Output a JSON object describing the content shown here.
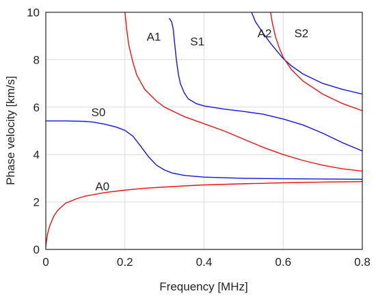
{
  "chart_data": {
    "type": "line",
    "title": "",
    "xlabel": "Frequency [MHz]",
    "ylabel": "Phase velocity [km/s]",
    "xlim": [
      0,
      0.8
    ],
    "ylim": [
      0,
      10
    ],
    "xticks": [
      "0",
      "0.2",
      "0.4",
      "0.6",
      "0.8"
    ],
    "yticks": [
      "0",
      "2",
      "4",
      "6",
      "8",
      "10"
    ],
    "grid": true,
    "legend": "none",
    "colors": {
      "symmetric": "#1010ee",
      "antisymmetric": "#ee1010"
    },
    "series": [
      {
        "name": "A0",
        "color": "#ee1010",
        "x": [
          0.0,
          0.002,
          0.005,
          0.01,
          0.02,
          0.03,
          0.05,
          0.08,
          0.1,
          0.15,
          0.2,
          0.25,
          0.3,
          0.35,
          0.4,
          0.5,
          0.6,
          0.7,
          0.8
        ],
        "y": [
          0.1,
          0.4,
          0.7,
          1.0,
          1.4,
          1.65,
          1.95,
          2.15,
          2.25,
          2.4,
          2.5,
          2.58,
          2.63,
          2.68,
          2.72,
          2.77,
          2.81,
          2.84,
          2.86
        ]
      },
      {
        "name": "S0",
        "color": "#1010ee",
        "x": [
          0.0,
          0.05,
          0.1,
          0.12,
          0.15,
          0.18,
          0.2,
          0.22,
          0.24,
          0.26,
          0.28,
          0.3,
          0.32,
          0.35,
          0.4,
          0.5,
          0.6,
          0.7,
          0.8
        ],
        "y": [
          5.42,
          5.42,
          5.4,
          5.37,
          5.28,
          5.15,
          5.02,
          4.78,
          4.35,
          3.9,
          3.55,
          3.35,
          3.22,
          3.12,
          3.05,
          3.0,
          2.98,
          2.97,
          2.96
        ]
      },
      {
        "name": "A1",
        "color": "#ee1010",
        "x": [
          0.2,
          0.205,
          0.21,
          0.22,
          0.23,
          0.25,
          0.28,
          0.3,
          0.35,
          0.4,
          0.45,
          0.5,
          0.55,
          0.6,
          0.65,
          0.7,
          0.75,
          0.8
        ],
        "y": [
          10.0,
          9.2,
          8.6,
          7.9,
          7.35,
          6.75,
          6.25,
          6.0,
          5.6,
          5.3,
          5.0,
          4.65,
          4.3,
          4.0,
          3.75,
          3.55,
          3.4,
          3.3
        ]
      },
      {
        "name": "S1",
        "color": "#1010ee",
        "x": [
          0.312,
          0.318,
          0.322,
          0.325,
          0.33,
          0.335,
          0.34,
          0.35,
          0.36,
          0.38,
          0.4,
          0.45,
          0.5,
          0.55,
          0.6,
          0.65,
          0.7,
          0.75,
          0.8
        ],
        "y": [
          9.75,
          9.6,
          9.3,
          8.8,
          8.0,
          7.4,
          7.0,
          6.6,
          6.35,
          6.15,
          6.05,
          5.92,
          5.82,
          5.7,
          5.5,
          5.25,
          4.9,
          4.5,
          4.15
        ]
      },
      {
        "name": "A2",
        "color": "#1010ee",
        "x": [
          0.52,
          0.53,
          0.55,
          0.57,
          0.6,
          0.62,
          0.65,
          0.7,
          0.75,
          0.8
        ],
        "y": [
          10.0,
          9.6,
          9.1,
          8.65,
          8.05,
          7.75,
          7.4,
          7.0,
          6.75,
          6.55
        ]
      },
      {
        "name": "S2",
        "color": "#ee1010",
        "x": [
          0.568,
          0.572,
          0.58,
          0.59,
          0.6,
          0.62,
          0.65,
          0.7,
          0.75,
          0.8
        ],
        "y": [
          10.0,
          9.6,
          9.0,
          8.5,
          8.1,
          7.6,
          7.1,
          6.55,
          6.15,
          5.85
        ]
      }
    ],
    "annotations": [
      {
        "text": "A0",
        "x": 0.125,
        "y": 2.5
      },
      {
        "text": "S0",
        "x": 0.115,
        "y": 5.62
      },
      {
        "text": "A1",
        "x": 0.255,
        "y": 8.8
      },
      {
        "text": "S1",
        "x": 0.365,
        "y": 8.6
      },
      {
        "text": "A2",
        "x": 0.535,
        "y": 8.95
      },
      {
        "text": "S2",
        "x": 0.628,
        "y": 8.95
      }
    ]
  }
}
